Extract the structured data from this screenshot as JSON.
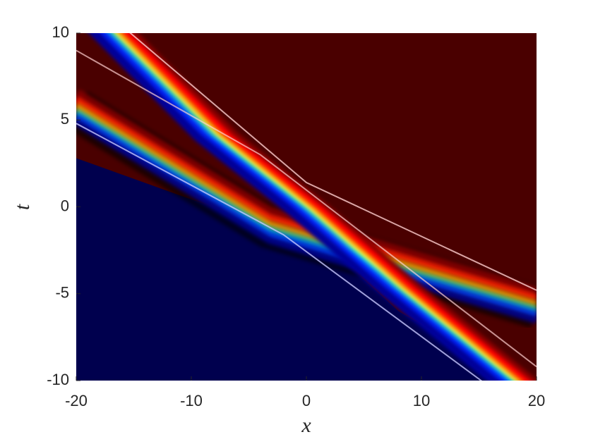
{
  "chart_data": {
    "type": "heatmap",
    "xlabel": "x",
    "ylabel": "t",
    "xlim": [
      -20,
      20
    ],
    "ylim": [
      -10,
      10
    ],
    "xticks": [
      -20,
      -10,
      0,
      10,
      20
    ],
    "yticks": [
      -10,
      -5,
      0,
      5,
      10
    ]
  }
}
